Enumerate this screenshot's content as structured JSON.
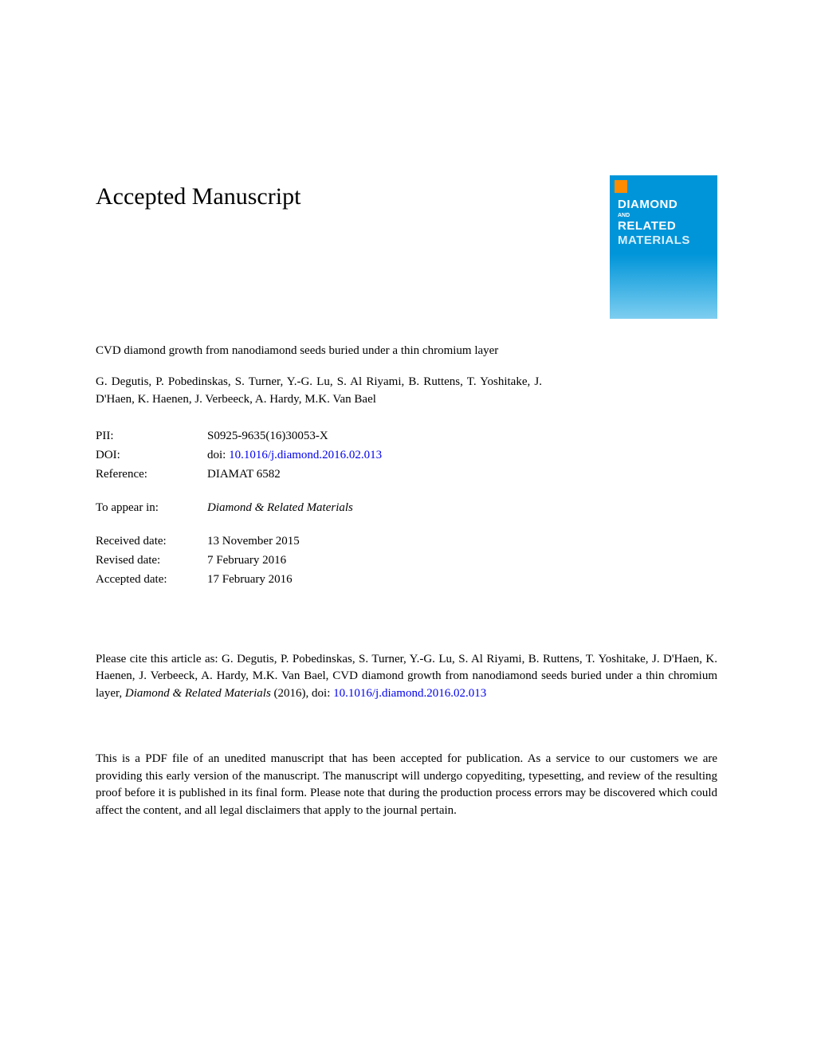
{
  "heading": "Accepted Manuscript",
  "journal_cover": {
    "line1": "DIAMOND",
    "and": "AND",
    "line2": "RELATED",
    "line3": "MATERIALS"
  },
  "article_title": "CVD diamond growth from nanodiamond seeds buried under a thin chromium layer",
  "authors": "G. Degutis, P. Pobedinskas, S. Turner, Y.-G. Lu, S. Al Riyami, B. Ruttens, T. Yoshitake, J. D'Haen, K. Haenen, J. Verbeeck, A. Hardy, M.K. Van Bael",
  "meta": {
    "pii_label": "PII:",
    "pii_value": "S0925-9635(16)30053-X",
    "doi_label": "DOI:",
    "doi_prefix": "doi: ",
    "doi_link": "10.1016/j.diamond.2016.02.013",
    "ref_label": "Reference:",
    "ref_value": "DIAMAT 6582",
    "appear_label": "To appear in:",
    "appear_value": "Diamond & Related Materials",
    "received_label": "Received date:",
    "received_value": "13 November 2015",
    "revised_label": "Revised date:",
    "revised_value": "7 February 2016",
    "accepted_label": "Accepted date:",
    "accepted_value": "17 February 2016"
  },
  "citation": {
    "prefix": "Please cite this article as: G. Degutis, P. Pobedinskas, S. Turner, Y.-G. Lu, S. Al Riyami, B. Ruttens, T. Yoshitake, J. D'Haen, K. Haenen, J. Verbeeck, A. Hardy, M.K. Van Bael, CVD diamond growth from nanodiamond seeds buried under a thin chromium layer, ",
    "journal": "Diamond & Related Materials",
    "year": " (2016),  doi: ",
    "doi_link": "10.1016/j.diamond.2016.02.013"
  },
  "disclaimer": "This is a PDF file of an unedited manuscript that has been accepted for publication. As a service to our customers we are providing this early version of the manuscript. The manuscript will undergo copyediting, typesetting, and review of the resulting proof before it is published in its final form. Please note that during the production process errors may be discovered which could affect the content, and all legal disclaimers that apply to the journal pertain."
}
